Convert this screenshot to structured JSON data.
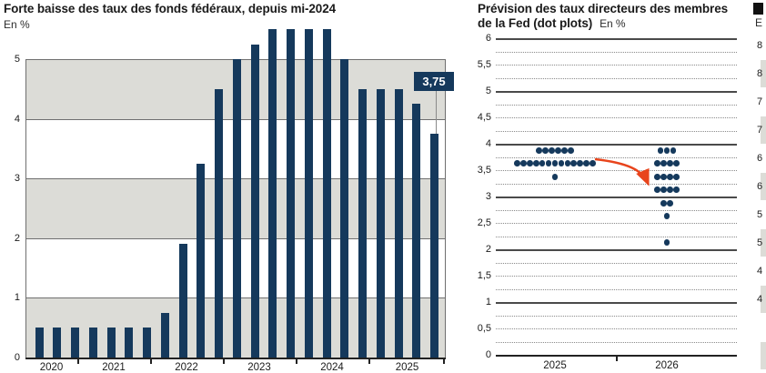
{
  "colors": {
    "navy": "#15395C",
    "red_arrow": "#E8441C",
    "band_gray": "#DCDCD7",
    "grid_gray": "#6F6F6F",
    "axis_dark": "#222222",
    "callout_line": "#8A8A8A",
    "text": "#1A1A1A",
    "callout_text": "#FFFFFF"
  },
  "chart_data": [
    {
      "type": "bar",
      "title": "Forte baisse des taux des fonds fédéraux, depuis mi-2024",
      "unit": "En %",
      "ylim": [
        0,
        5.5
      ],
      "yticks": [
        0,
        1,
        2,
        3,
        4,
        5
      ],
      "grid": "horizontal gridlines with alternating gray bands (0-1, 2-3, 4-5 gray)",
      "legend": "none",
      "year_labels": [
        "2020",
        "2021",
        "2022",
        "2023",
        "2024",
        "2025"
      ],
      "categories": [
        "2020-T2",
        "2020-T3",
        "2020-T4",
        "2021-T1",
        "2021-T2",
        "2021-T3",
        "2021-T4",
        "2022-T1",
        "2022-T2",
        "2022-T3",
        "2022-T4",
        "2023-T1",
        "2023-T2",
        "2023-T3",
        "2023-T4",
        "2024-T1",
        "2024-T2",
        "2024-T3",
        "2024-T4",
        "2025-T1",
        "2025-T2",
        "2025-T3",
        "2025-T4"
      ],
      "values": [
        0.5,
        0.5,
        0.5,
        0.5,
        0.5,
        0.5,
        0.5,
        0.75,
        1.9,
        3.25,
        4.5,
        5,
        5.25,
        5.5,
        5.5,
        5.5,
        5.5,
        5,
        4.5,
        4.5,
        4.5,
        4.25,
        3.75
      ],
      "callout": {
        "label": "3,75",
        "value": 3.75
      }
    },
    {
      "type": "scatter",
      "title_lines": [
        "Prévision des taux directeurs des membres",
        "de la Fed (dot plots)"
      ],
      "unit": "En %",
      "ylim": [
        0,
        6
      ],
      "ytick_step": 0.5,
      "minor_grid_step": 0.25,
      "ytick_labels": [
        "0",
        "0,5",
        "1",
        "1,5",
        "2",
        "2,5",
        "3",
        "3,5",
        "4",
        "4,5",
        "5",
        "5,5",
        "6"
      ],
      "grid": "solid lines at integers, dotted lines every 0.25",
      "categories": [
        "2025",
        "2026"
      ],
      "series": [
        {
          "name": "2025",
          "dots": [
            {
              "rate": 3.875,
              "count": 6
            },
            {
              "rate": 3.625,
              "count": 13
            },
            {
              "rate": 3.375,
              "count": 1
            }
          ]
        },
        {
          "name": "2026",
          "dots": [
            {
              "rate": 3.875,
              "count": 3
            },
            {
              "rate": 3.625,
              "count": 4
            },
            {
              "rate": 3.375,
              "count": 4
            },
            {
              "rate": 3.125,
              "count": 4
            },
            {
              "rate": 2.875,
              "count": 2
            },
            {
              "rate": 2.625,
              "count": 1
            },
            {
              "rate": 2.125,
              "count": 1
            }
          ]
        }
      ],
      "annotation": {
        "type": "arrow",
        "from_year": "2025",
        "from_rate": 3.625,
        "to_year": "2026",
        "to_rate": 3.25
      }
    },
    {
      "type": "bar",
      "cropped": true,
      "unit_fragment": "E",
      "visible_y_labels": [
        "8",
        "8",
        "7",
        "7",
        "6",
        "6",
        "5",
        "5",
        "4",
        "4"
      ]
    }
  ]
}
